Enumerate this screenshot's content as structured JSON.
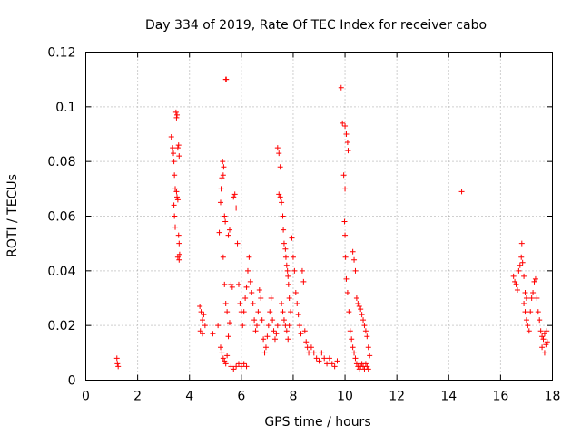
{
  "chart_data": {
    "type": "scatter",
    "title": "Day 334 of 2019, Rate Of TEC Index for receiver cabo",
    "xlabel": "GPS time / hours",
    "ylabel": "ROTI / TECUs",
    "xlim": [
      0,
      18
    ],
    "ylim": [
      0,
      0.12
    ],
    "x_ticks": [
      0,
      2,
      4,
      6,
      8,
      10,
      12,
      14,
      16,
      18
    ],
    "x_tick_labels": [
      "0",
      "2",
      "4",
      "6",
      "8",
      "10",
      "12",
      "14",
      "16",
      "18"
    ],
    "y_ticks": [
      0,
      0.02,
      0.04,
      0.06,
      0.08,
      0.1,
      0.12
    ],
    "y_tick_labels": [
      "0",
      "0.02",
      "0.04",
      "0.06",
      "0.08",
      "0.1",
      "0.12"
    ],
    "grid": true,
    "marker": "+",
    "color": "#ff0000",
    "series": [
      {
        "name": "ROTI",
        "points": [
          [
            1.2,
            0.008
          ],
          [
            1.22,
            0.006
          ],
          [
            1.25,
            0.005
          ],
          [
            3.3,
            0.089
          ],
          [
            3.35,
            0.085
          ],
          [
            3.38,
            0.083
          ],
          [
            3.4,
            0.08
          ],
          [
            3.42,
            0.075
          ],
          [
            3.45,
            0.07
          ],
          [
            3.48,
            0.098
          ],
          [
            3.5,
            0.096
          ],
          [
            3.52,
            0.097
          ],
          [
            3.55,
            0.085
          ],
          [
            3.58,
            0.086
          ],
          [
            3.6,
            0.082
          ],
          [
            3.4,
            0.064
          ],
          [
            3.42,
            0.06
          ],
          [
            3.45,
            0.056
          ],
          [
            3.5,
            0.069
          ],
          [
            3.52,
            0.067
          ],
          [
            3.55,
            0.066
          ],
          [
            3.58,
            0.053
          ],
          [
            3.6,
            0.05
          ],
          [
            3.62,
            0.046
          ],
          [
            3.6,
            0.044
          ],
          [
            3.55,
            0.045
          ],
          [
            4.4,
            0.027
          ],
          [
            4.45,
            0.025
          ],
          [
            4.5,
            0.022
          ],
          [
            4.55,
            0.024
          ],
          [
            4.6,
            0.02
          ],
          [
            4.42,
            0.018
          ],
          [
            4.5,
            0.017
          ],
          [
            4.9,
            0.017
          ],
          [
            5.1,
            0.02
          ],
          [
            5.15,
            0.054
          ],
          [
            5.2,
            0.065
          ],
          [
            5.22,
            0.07
          ],
          [
            5.25,
            0.074
          ],
          [
            5.28,
            0.08
          ],
          [
            5.3,
            0.075
          ],
          [
            5.32,
            0.078
          ],
          [
            5.35,
            0.06
          ],
          [
            5.38,
            0.058
          ],
          [
            5.4,
            0.11
          ],
          [
            5.42,
            0.11
          ],
          [
            5.3,
            0.045
          ],
          [
            5.35,
            0.035
          ],
          [
            5.4,
            0.028
          ],
          [
            5.45,
            0.025
          ],
          [
            5.5,
            0.053
          ],
          [
            5.55,
            0.055
          ],
          [
            5.2,
            0.012
          ],
          [
            5.25,
            0.01
          ],
          [
            5.3,
            0.008
          ],
          [
            5.35,
            0.007
          ],
          [
            5.4,
            0.006
          ],
          [
            5.45,
            0.009
          ],
          [
            5.5,
            0.016
          ],
          [
            5.55,
            0.021
          ],
          [
            5.6,
            0.035
          ],
          [
            5.65,
            0.034
          ],
          [
            5.7,
            0.067
          ],
          [
            5.75,
            0.068
          ],
          [
            5.8,
            0.063
          ],
          [
            5.85,
            0.05
          ],
          [
            5.6,
            0.005
          ],
          [
            5.7,
            0.004
          ],
          [
            5.8,
            0.005
          ],
          [
            5.9,
            0.006
          ],
          [
            6.0,
            0.005
          ],
          [
            6.1,
            0.006
          ],
          [
            6.2,
            0.005
          ],
          [
            5.9,
            0.035
          ],
          [
            5.95,
            0.028
          ],
          [
            6.0,
            0.025
          ],
          [
            6.05,
            0.02
          ],
          [
            6.1,
            0.025
          ],
          [
            6.15,
            0.03
          ],
          [
            6.2,
            0.034
          ],
          [
            6.25,
            0.04
          ],
          [
            6.3,
            0.045
          ],
          [
            6.35,
            0.036
          ],
          [
            6.4,
            0.032
          ],
          [
            6.45,
            0.028
          ],
          [
            6.5,
            0.022
          ],
          [
            6.55,
            0.018
          ],
          [
            6.6,
            0.02
          ],
          [
            6.65,
            0.025
          ],
          [
            6.7,
            0.033
          ],
          [
            6.75,
            0.03
          ],
          [
            6.8,
            0.022
          ],
          [
            6.85,
            0.015
          ],
          [
            6.9,
            0.01
          ],
          [
            6.95,
            0.012
          ],
          [
            7.0,
            0.016
          ],
          [
            7.05,
            0.02
          ],
          [
            7.1,
            0.025
          ],
          [
            7.15,
            0.03
          ],
          [
            7.2,
            0.022
          ],
          [
            7.25,
            0.018
          ],
          [
            7.3,
            0.015
          ],
          [
            7.35,
            0.017
          ],
          [
            7.4,
            0.02
          ],
          [
            7.45,
            0.068
          ],
          [
            7.5,
            0.067
          ],
          [
            7.55,
            0.065
          ],
          [
            7.6,
            0.06
          ],
          [
            7.62,
            0.055
          ],
          [
            7.65,
            0.05
          ],
          [
            7.7,
            0.048
          ],
          [
            7.72,
            0.045
          ],
          [
            7.75,
            0.042
          ],
          [
            7.78,
            0.04
          ],
          [
            7.8,
            0.038
          ],
          [
            7.82,
            0.035
          ],
          [
            7.85,
            0.03
          ],
          [
            7.4,
            0.085
          ],
          [
            7.45,
            0.083
          ],
          [
            7.5,
            0.078
          ],
          [
            7.55,
            0.028
          ],
          [
            7.6,
            0.025
          ],
          [
            7.65,
            0.022
          ],
          [
            7.7,
            0.02
          ],
          [
            7.75,
            0.018
          ],
          [
            7.8,
            0.015
          ],
          [
            7.85,
            0.02
          ],
          [
            7.9,
            0.025
          ],
          [
            7.95,
            0.052
          ],
          [
            8.0,
            0.045
          ],
          [
            8.05,
            0.04
          ],
          [
            8.1,
            0.032
          ],
          [
            8.15,
            0.028
          ],
          [
            8.2,
            0.024
          ],
          [
            8.25,
            0.02
          ],
          [
            8.3,
            0.017
          ],
          [
            8.35,
            0.04
          ],
          [
            8.4,
            0.036
          ],
          [
            8.45,
            0.018
          ],
          [
            8.5,
            0.014
          ],
          [
            8.55,
            0.012
          ],
          [
            8.6,
            0.01
          ],
          [
            8.7,
            0.012
          ],
          [
            8.8,
            0.01
          ],
          [
            8.9,
            0.008
          ],
          [
            9.0,
            0.007
          ],
          [
            9.1,
            0.01
          ],
          [
            9.2,
            0.008
          ],
          [
            9.3,
            0.006
          ],
          [
            9.4,
            0.008
          ],
          [
            9.5,
            0.006
          ],
          [
            9.6,
            0.005
          ],
          [
            9.7,
            0.007
          ],
          [
            9.85,
            0.107
          ],
          [
            9.9,
            0.094
          ],
          [
            10.0,
            0.093
          ],
          [
            10.05,
            0.09
          ],
          [
            10.1,
            0.087
          ],
          [
            10.12,
            0.084
          ],
          [
            9.95,
            0.075
          ],
          [
            10.0,
            0.07
          ],
          [
            9.98,
            0.058
          ],
          [
            10.0,
            0.053
          ],
          [
            10.02,
            0.045
          ],
          [
            10.05,
            0.037
          ],
          [
            10.1,
            0.032
          ],
          [
            10.15,
            0.025
          ],
          [
            10.2,
            0.018
          ],
          [
            10.25,
            0.015
          ],
          [
            10.3,
            0.012
          ],
          [
            10.35,
            0.01
          ],
          [
            10.4,
            0.008
          ],
          [
            10.45,
            0.006
          ],
          [
            10.5,
            0.005
          ],
          [
            10.55,
            0.004
          ],
          [
            10.6,
            0.005
          ],
          [
            10.65,
            0.006
          ],
          [
            10.7,
            0.005
          ],
          [
            10.75,
            0.004
          ],
          [
            10.8,
            0.006
          ],
          [
            10.85,
            0.005
          ],
          [
            10.9,
            0.004
          ],
          [
            10.3,
            0.047
          ],
          [
            10.35,
            0.044
          ],
          [
            10.4,
            0.04
          ],
          [
            10.45,
            0.03
          ],
          [
            10.5,
            0.028
          ],
          [
            10.55,
            0.027
          ],
          [
            10.6,
            0.026
          ],
          [
            10.65,
            0.024
          ],
          [
            10.7,
            0.022
          ],
          [
            10.75,
            0.02
          ],
          [
            10.8,
            0.018
          ],
          [
            10.85,
            0.016
          ],
          [
            10.9,
            0.012
          ],
          [
            10.95,
            0.009
          ],
          [
            14.5,
            0.069
          ],
          [
            16.5,
            0.038
          ],
          [
            16.55,
            0.036
          ],
          [
            16.6,
            0.035
          ],
          [
            16.65,
            0.033
          ],
          [
            16.7,
            0.04
          ],
          [
            16.75,
            0.042
          ],
          [
            16.8,
            0.045
          ],
          [
            16.82,
            0.05
          ],
          [
            16.85,
            0.043
          ],
          [
            16.9,
            0.038
          ],
          [
            16.95,
            0.032
          ],
          [
            17.0,
            0.03
          ],
          [
            16.9,
            0.028
          ],
          [
            16.95,
            0.025
          ],
          [
            17.0,
            0.022
          ],
          [
            17.05,
            0.02
          ],
          [
            17.1,
            0.018
          ],
          [
            17.15,
            0.025
          ],
          [
            17.2,
            0.03
          ],
          [
            17.25,
            0.032
          ],
          [
            17.3,
            0.036
          ],
          [
            17.35,
            0.037
          ],
          [
            17.4,
            0.03
          ],
          [
            17.45,
            0.025
          ],
          [
            17.5,
            0.022
          ],
          [
            17.55,
            0.018
          ],
          [
            17.6,
            0.016
          ],
          [
            17.65,
            0.015
          ],
          [
            17.7,
            0.017
          ],
          [
            17.75,
            0.013
          ],
          [
            17.6,
            0.012
          ],
          [
            17.7,
            0.01
          ],
          [
            17.8,
            0.014
          ],
          [
            17.78,
            0.018
          ]
        ]
      }
    ]
  }
}
